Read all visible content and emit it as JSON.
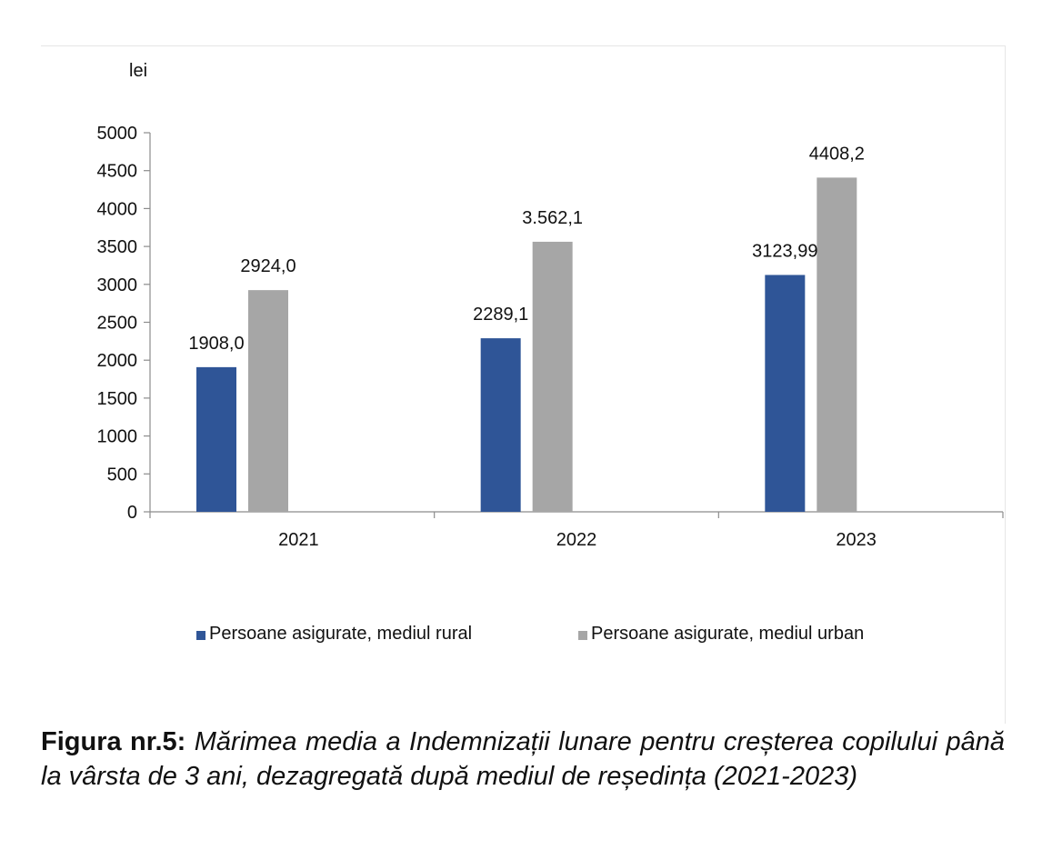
{
  "chart_data": {
    "type": "bar",
    "unit_label": "lei",
    "categories": [
      "2021",
      "2022",
      "2023"
    ],
    "ylim": [
      0,
      5000
    ],
    "yticks": [
      0,
      500,
      1000,
      1500,
      2000,
      2500,
      3000,
      3500,
      4000,
      4500,
      5000
    ],
    "series": [
      {
        "name": "Persoane asigurate, mediul rural",
        "color": "#2f5597",
        "values": [
          1908.0,
          2289.1,
          3123.99
        ],
        "labels": [
          "1908,0",
          "2289,1",
          "3123,99"
        ]
      },
      {
        "name": "Persoane asigurate, mediul urban",
        "color": "#a6a6a6",
        "values": [
          2924.0,
          3562.1,
          4408.2
        ],
        "labels": [
          "2924,0",
          "3.562,1",
          "4408,2"
        ]
      }
    ],
    "legend_position": "bottom",
    "grid": false
  },
  "caption": {
    "label": "Figura nr.5:",
    "text": "Mărimea media a Indemnizații lunare pentru creșterea copilului până la vârsta de 3 ani, dezagregată după mediul de reședința (2021-2023)"
  }
}
